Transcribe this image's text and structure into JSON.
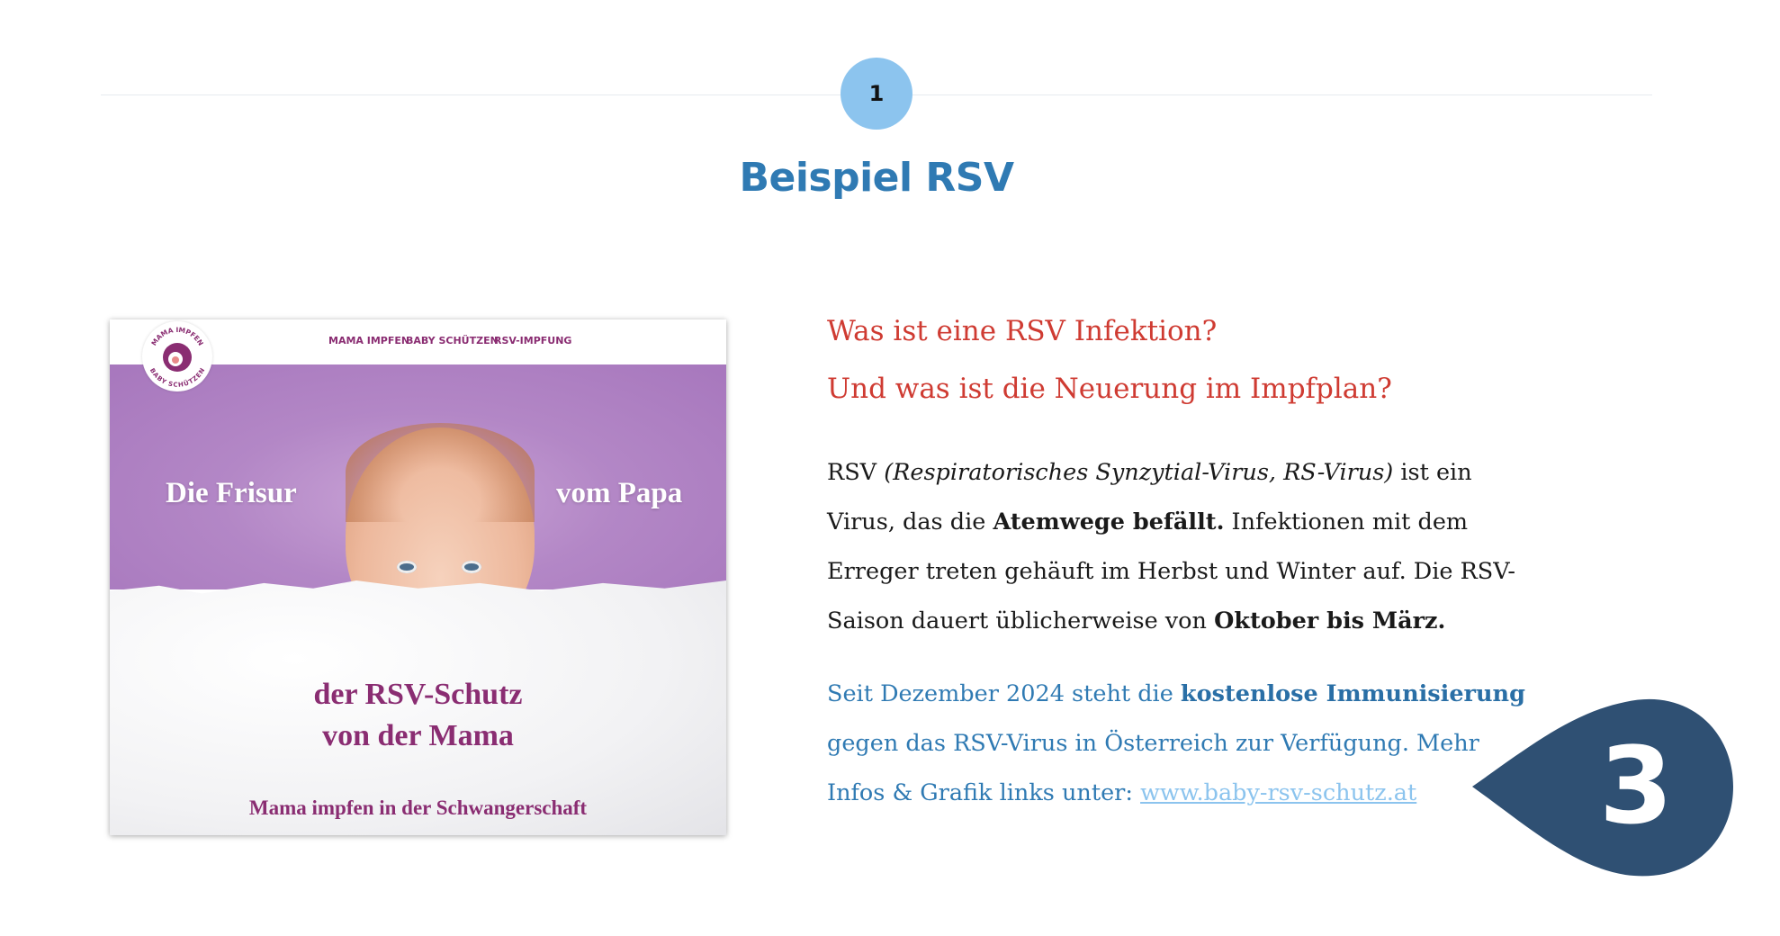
{
  "step": {
    "number": "1",
    "color": "#8cc4ee"
  },
  "section_title": "Beispiel RSV",
  "promo_image": {
    "logo_text_top": "MAMA IMPFEN",
    "logo_text_bottom": "BABY SCHÜTZEN",
    "nav": [
      "MAMA IMPFEN",
      "BABY SCHÜTZEN",
      "RSV-IMPFUNG"
    ],
    "headline_left": "Die Frisur",
    "headline_right": "vom Papa",
    "tagline_1": "der RSV-Schutz",
    "tagline_2": "von der Mama",
    "footer": "Mama impfen in der Schwangerschaft",
    "brand_color": "#8a2d72"
  },
  "questions": [
    "Was ist eine RSV Infektion?",
    "Und was ist die Neuerung im Impfplan?"
  ],
  "paragraph_1": [
    [
      {
        "t": "RSV "
      },
      {
        "t": "(Respiratorisches Synzytial-Virus, RS-Virus)",
        "s": "i"
      },
      {
        "t": " ist ein"
      }
    ],
    [
      {
        "t": "Virus, das die "
      },
      {
        "t": "Atemwege befällt.",
        "s": "b"
      },
      {
        "t": " Infektionen mit dem"
      }
    ],
    [
      {
        "t": "Erreger treten gehäuft im Herbst und Winter auf. Die RSV-"
      }
    ],
    [
      {
        "t": "Saison dauert üblicherweise von "
      },
      {
        "t": "Oktober bis März.",
        "s": "b"
      }
    ]
  ],
  "paragraph_2": [
    [
      {
        "t": "Seit Dezember 2024 steht die "
      },
      {
        "t": "kostenlose Immunisierung",
        "s": "b"
      }
    ],
    [
      {
        "t": "gegen das RSV-Virus in Österreich zur Verfügung. Mehr"
      }
    ],
    [
      {
        "t": "Infos & Grafik links unter: "
      },
      {
        "t": "www.baby-rsv-schutz.at",
        "s": "link"
      }
    ]
  ],
  "callout_badge": {
    "number": "3",
    "color": "#2f5073"
  },
  "colors": {
    "title": "#2f7ab3",
    "question": "#cf3b32",
    "body": "#1a1a1a",
    "info": "#2f7ab3",
    "link": "#8cc4ee"
  }
}
